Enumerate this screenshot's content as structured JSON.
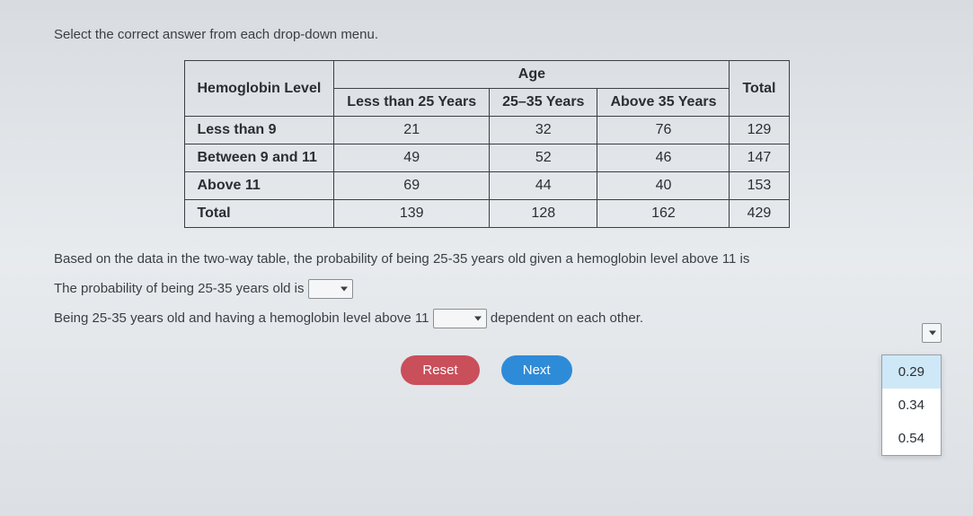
{
  "instruction": "Select the correct answer from each drop-down menu.",
  "table": {
    "corner_label": "Hemoglobin Level",
    "super_header": "Age",
    "col_headers": [
      "Less than 25 Years",
      "25–35 Years",
      "Above 35 Years",
      "Total"
    ],
    "rows": [
      {
        "label": "Less than 9",
        "cells": [
          "21",
          "32",
          "76",
          "129"
        ]
      },
      {
        "label": "Between 9 and 11",
        "cells": [
          "49",
          "52",
          "46",
          "147"
        ]
      },
      {
        "label": "Above 11",
        "cells": [
          "69",
          "44",
          "40",
          "153"
        ]
      },
      {
        "label": "Total",
        "cells": [
          "139",
          "128",
          "162",
          "429"
        ]
      }
    ],
    "border_color": "#3a3f44",
    "text_color": "#2a2e32",
    "font_size": 16
  },
  "question": {
    "line1_pre": "Based on the data in the two-way table, the probability of being 25-35 years old given a hemoglobin level above 11 is",
    "line2_pre": "The probability of being 25-35 years old is",
    "line3_pre": "Being 25-35 years old and having a hemoglobin level above 11",
    "line3_post": "dependent on each other."
  },
  "buttons": {
    "reset": "Reset",
    "next": "Next"
  },
  "open_dropdown": {
    "options": [
      "0.29",
      "0.34",
      "0.54"
    ],
    "highlighted_index": 0,
    "background": "#ffffff",
    "highlight_color": "#cfe8f7",
    "border_color": "#9aa0a6"
  },
  "colors": {
    "page_bg_top": "#d8dce0",
    "page_bg_bottom": "#dce0e4",
    "text": "#3a3f44",
    "reset_btn": "#c94f5a",
    "next_btn": "#2e8bd8",
    "select_border": "#8a8f94",
    "select_bg": "#f4f6f8"
  }
}
